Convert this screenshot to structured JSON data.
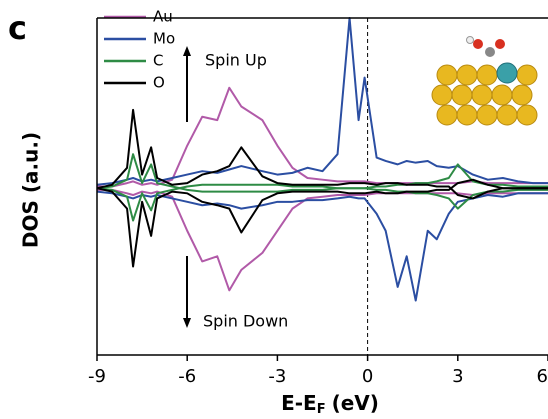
{
  "chart_data": {
    "type": "line",
    "panel_label": "c",
    "x_label": "E-E",
    "x_label_sub": "F",
    "x_label_unit": "(eV)",
    "y_label": "DOS (a.u.)",
    "annotations": [
      "Spin Up",
      "Spin Down"
    ],
    "xlim": [
      -9,
      6
    ],
    "ylim": [
      -9.8,
      10
    ],
    "xticks": [
      -9,
      -6,
      -3,
      0,
      3,
      6
    ],
    "reference_line_x": 0,
    "legend": "top-left",
    "x": [
      -9,
      -8.5,
      -8,
      -7.8,
      -7.5,
      -7.2,
      -7,
      -6.5,
      -6,
      -5.5,
      -5,
      -4.6,
      -4.2,
      -3.5,
      -3,
      -2.5,
      -2,
      -1.5,
      -1,
      -0.6,
      -0.3,
      -0.1,
      0.3,
      0.6,
      1,
      1.3,
      1.6,
      2,
      2.3,
      2.7,
      3,
      3.5,
      4,
      4.5,
      5,
      5.5,
      6
    ],
    "series": [
      {
        "name": "Au",
        "color": "#b15aa8",
        "values": [
          0.1,
          0.1,
          0.3,
          0.4,
          0.2,
          0.3,
          0.2,
          0.5,
          2.5,
          4.2,
          4,
          5.9,
          4.8,
          4.0,
          2.5,
          1.2,
          0.6,
          0.5,
          0.4,
          0.4,
          0.4,
          0.4,
          0.3,
          0.3,
          0.3,
          0.3,
          0.3,
          0.3,
          0.3,
          0.3,
          0.3,
          0.4,
          0.3,
          0.3,
          0.3,
          0.3,
          0.3
        ],
        "down_values": [
          -0.1,
          -0.1,
          -0.3,
          -0.4,
          -0.2,
          -0.3,
          -0.2,
          -0.5,
          -2.5,
          -4.3,
          -4,
          -6,
          -4.8,
          -3.8,
          -2.5,
          -1.2,
          -0.6,
          -0.5,
          -0.4,
          -0.4,
          -0.4,
          -0.4,
          -0.3,
          -0.3,
          -0.3,
          -0.3,
          -0.3,
          -0.3,
          -0.3,
          -0.3,
          -0.3,
          -0.4,
          -0.3,
          -0.3,
          -0.3,
          -0.3,
          -0.3
        ]
      },
      {
        "name": "Mo",
        "color": "#2b4ea2",
        "values": [
          0.2,
          0.3,
          0.5,
          0.6,
          0.4,
          0.5,
          0.4,
          0.6,
          0.8,
          1.0,
          0.9,
          1.1,
          1.3,
          1.0,
          0.8,
          0.9,
          1.2,
          1.0,
          2.0,
          10,
          4,
          6.5,
          1.8,
          1.6,
          1.4,
          1.6,
          1.5,
          1.6,
          1.3,
          1.2,
          1.3,
          0.8,
          0.5,
          0.6,
          0.4,
          0.3,
          0.3
        ],
        "down_values": [
          -0.2,
          -0.3,
          -0.5,
          -0.6,
          -0.4,
          -0.5,
          -0.4,
          -0.6,
          -0.8,
          -1.0,
          -0.9,
          -1.0,
          -1.2,
          -1.0,
          -0.8,
          -0.8,
          -0.7,
          -0.7,
          -0.6,
          -0.5,
          -0.6,
          -0.6,
          -1.5,
          -2.5,
          -5.8,
          -4,
          -6.6,
          -2.5,
          -3,
          -1.5,
          -0.8,
          -0.6,
          -0.4,
          -0.5,
          -0.3,
          -0.3,
          -0.3
        ]
      },
      {
        "name": "C",
        "color": "#2e8b45",
        "values": [
          0,
          0.1,
          0.5,
          2,
          0.3,
          1.4,
          0.3,
          0.1,
          -0.1,
          -0.2,
          -0.2,
          -0.2,
          -0.2,
          -0.2,
          -0.2,
          -0.1,
          -0.1,
          -0.1,
          0,
          0,
          0,
          0,
          0.1,
          0.1,
          0.2,
          0.2,
          0.3,
          0.3,
          0.4,
          0.6,
          1.4,
          0.4,
          0.2,
          0.2,
          0.1,
          0.1,
          0.1
        ],
        "down_values": [
          0,
          -0.1,
          -0.5,
          -1.9,
          -0.3,
          -1.3,
          -0.3,
          -0.1,
          0.1,
          0.2,
          0.2,
          0.2,
          0.2,
          0.2,
          0.2,
          0.1,
          0.1,
          0.1,
          0,
          0,
          0,
          0,
          -0.1,
          -0.1,
          -0.2,
          -0.2,
          -0.3,
          -0.3,
          -0.4,
          -0.6,
          -1.2,
          -0.4,
          -0.2,
          -0.2,
          -0.1,
          -0.1,
          -0.1
        ]
      },
      {
        "name": "O",
        "color": "#000000",
        "values": [
          0,
          0.2,
          1.2,
          4.6,
          0.8,
          2.4,
          0.6,
          0.2,
          0.3,
          0.8,
          1.0,
          1.3,
          2.4,
          0.7,
          0.3,
          0.2,
          0.2,
          0.2,
          0.2,
          0.3,
          0.3,
          0.3,
          0.2,
          0.3,
          0.3,
          0.2,
          0.2,
          0.2,
          0.1,
          0.1,
          -0.4,
          -0.6,
          -0.2,
          0,
          0,
          0,
          0
        ],
        "down_values": [
          0,
          -0.2,
          -1.2,
          -4.6,
          -0.8,
          -2.8,
          -0.6,
          -0.2,
          -0.3,
          -0.8,
          -1.0,
          -1.2,
          -2.6,
          -0.7,
          -0.3,
          -0.2,
          -0.2,
          -0.2,
          -0.2,
          -0.3,
          -0.3,
          -0.3,
          -0.2,
          -0.3,
          -0.3,
          -0.2,
          -0.2,
          -0.2,
          -0.1,
          -0.1,
          0.3,
          0.5,
          0.2,
          0,
          0,
          0,
          0
        ]
      }
    ]
  }
}
